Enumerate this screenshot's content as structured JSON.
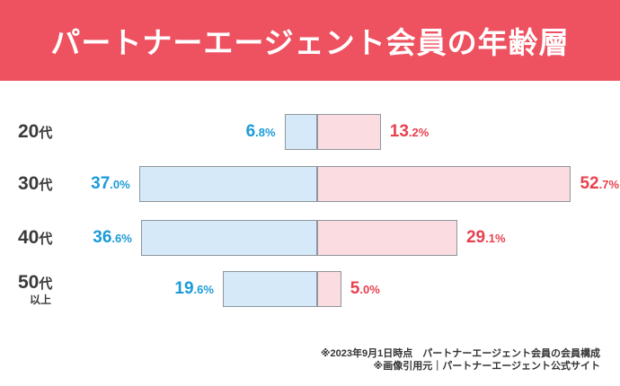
{
  "header": {
    "title": "パートナーエージェント会員の年齢層",
    "bg_color": "#ee5260",
    "text_color": "#ffffff"
  },
  "chart_data": {
    "type": "bar",
    "orientation": "diverging-horizontal",
    "title": "パートナーエージェント会員の年齢層",
    "unit": "%",
    "categories": [
      "20代",
      "30代",
      "40代",
      "50代以上"
    ],
    "series": [
      {
        "name": "左系列(青)",
        "fill_color": "#d6e9f8",
        "label_color": "#1b9bd8",
        "values": [
          6.8,
          37.0,
          36.6,
          19.6
        ]
      },
      {
        "name": "右系列(赤)",
        "fill_color": "#fbdce0",
        "label_color": "#e8414e",
        "values": [
          13.2,
          52.7,
          29.1,
          5.0
        ]
      }
    ],
    "bar_border_color": "#8e969c",
    "xlim": [
      0,
      55
    ],
    "grid": false,
    "legend": false,
    "rows": [
      {
        "category_main": "20",
        "category_suffix": "代",
        "category_sub": "",
        "male_value": 6.8,
        "male_label": "6.8%",
        "female_value": 13.2,
        "female_label": "13.2%"
      },
      {
        "category_main": "30",
        "category_suffix": "代",
        "category_sub": "",
        "male_value": 37.0,
        "male_label": "37.0%",
        "female_value": 52.7,
        "female_label": "52.7%"
      },
      {
        "category_main": "40",
        "category_suffix": "代",
        "category_sub": "",
        "male_value": 36.6,
        "male_label": "36.6%",
        "female_value": 29.1,
        "female_label": "29.1%"
      },
      {
        "category_main": "50",
        "category_suffix": "代",
        "category_sub": "以上",
        "male_value": 19.6,
        "male_label": "19.6%",
        "female_value": 5.0,
        "female_label": "5.0%"
      }
    ]
  },
  "footer": {
    "line1": "※2023年9月1日時点　パートナーエージェント会員の会員構成",
    "line2": "※画像引用元｜パートナーエージェント公式サイト"
  }
}
